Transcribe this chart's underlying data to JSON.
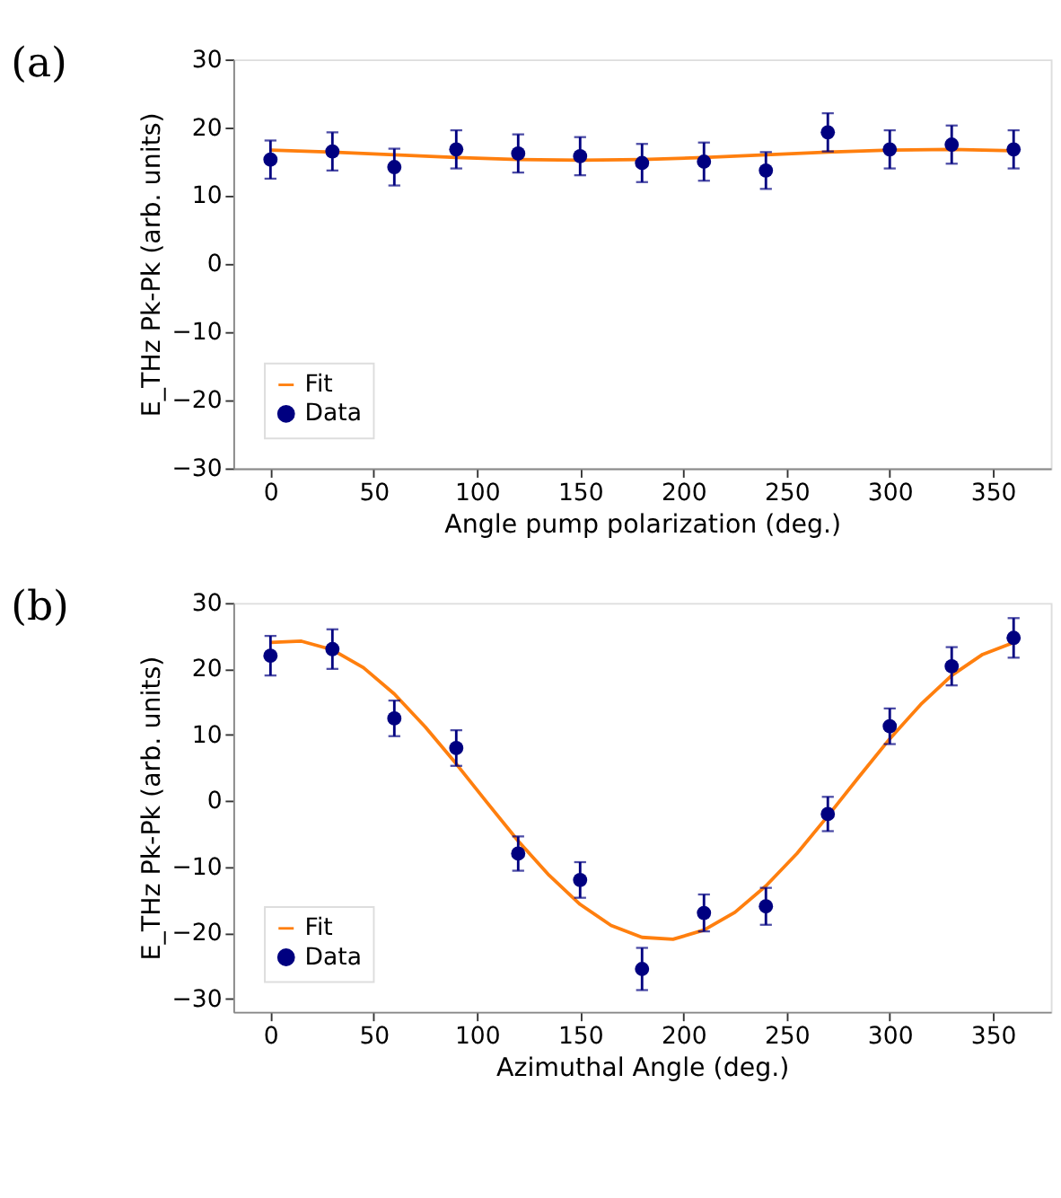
{
  "chart_data": [
    {
      "type": "scatter",
      "title": "(a)",
      "xlabel": "Angle pump polarization (deg.)",
      "ylabel": "E_THz Pk-Pk (arb. units)",
      "xlim": [
        -18,
        378
      ],
      "xticks": [
        0,
        50,
        100,
        150,
        200,
        250,
        300,
        350
      ],
      "ylim": [
        -30,
        30
      ],
      "yticks": [
        -30,
        -20,
        -10,
        0,
        10,
        20,
        30
      ],
      "grid": false,
      "legend": "bottom left",
      "series": [
        {
          "name": "Fit",
          "type": "line",
          "color": "#ff7f0e",
          "line_style": "solid",
          "marker": "none",
          "x": [
            0,
            30,
            60,
            90,
            120,
            150,
            180,
            210,
            240,
            270,
            300,
            330,
            360
          ],
          "values": [
            16.7,
            16.4,
            16.0,
            15.6,
            15.3,
            15.2,
            15.3,
            15.6,
            16.0,
            16.4,
            16.7,
            16.8,
            16.6
          ]
        },
        {
          "name": "Data",
          "color": "#000080",
          "marker": "circle",
          "x": [
            0,
            30,
            60,
            90,
            120,
            150,
            180,
            210,
            240,
            270,
            300,
            330,
            360
          ],
          "values": [
            15.3,
            16.5,
            14.2,
            16.8,
            16.2,
            15.8,
            14.8,
            15.0,
            13.7,
            19.3,
            16.8,
            17.5,
            16.8
          ],
          "errors": [
            2.8,
            2.8,
            2.7,
            2.8,
            2.8,
            2.8,
            2.8,
            2.8,
            2.7,
            2.8,
            2.8,
            2.8,
            2.8
          ]
        }
      ]
    },
    {
      "type": "scatter",
      "title": "(b)",
      "xlabel": "Azimuthal Angle (deg.)",
      "ylabel": "E_THz Pk-Pk (arb. units)",
      "xlim": [
        -18,
        378
      ],
      "xticks": [
        0,
        50,
        100,
        150,
        200,
        250,
        300,
        350
      ],
      "ylim": [
        -32,
        30
      ],
      "yticks": [
        -30,
        -20,
        -10,
        0,
        10,
        20,
        30
      ],
      "grid": false,
      "legend": "bottom left",
      "series": [
        {
          "name": "Fit",
          "type": "line",
          "color": "#ff7f0e",
          "line_style": "solid",
          "marker": "none",
          "x": [
            0,
            15,
            30,
            45,
            60,
            75,
            90,
            105,
            120,
            135,
            150,
            165,
            180,
            195,
            210,
            225,
            240,
            255,
            270,
            285,
            300,
            315,
            330,
            345,
            360
          ],
          "values": [
            24.0,
            24.2,
            22.9,
            20.2,
            16.2,
            11.2,
            5.6,
            -0.3,
            -6.1,
            -11.3,
            -15.7,
            -18.9,
            -20.7,
            -21.0,
            -19.6,
            -16.9,
            -12.9,
            -8.0,
            -2.3,
            3.6,
            9.4,
            14.6,
            19.0,
            22.2,
            24.0
          ]
        },
        {
          "name": "Data",
          "color": "#000080",
          "marker": "circle",
          "x": [
            0,
            30,
            60,
            90,
            120,
            150,
            180,
            210,
            240,
            270,
            300,
            330,
            360
          ],
          "values": [
            22.0,
            23.0,
            12.5,
            8.0,
            -8.0,
            -12.0,
            -25.5,
            -17.0,
            -16.0,
            -2.0,
            11.3,
            20.4,
            24.7
          ],
          "errors": [
            3.0,
            3.0,
            2.7,
            2.7,
            2.6,
            2.7,
            3.2,
            2.8,
            2.8,
            2.6,
            2.7,
            2.9,
            3.0
          ]
        }
      ]
    }
  ]
}
